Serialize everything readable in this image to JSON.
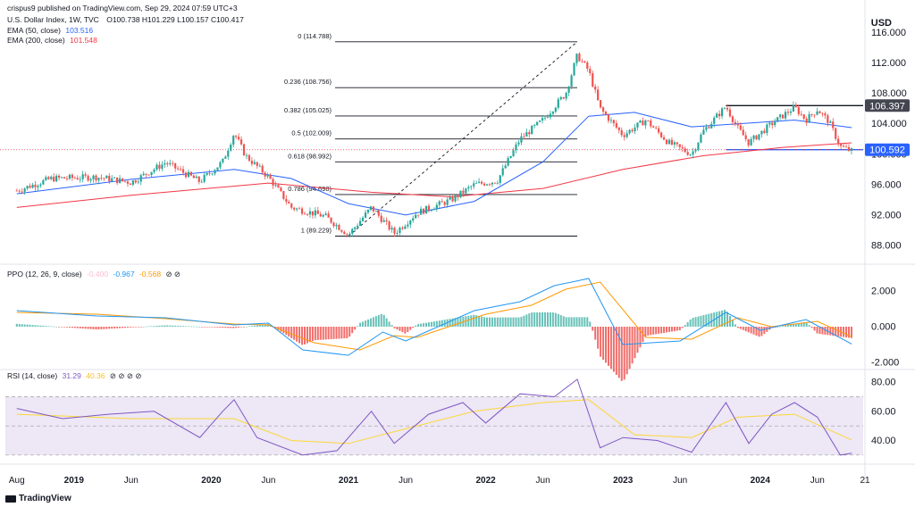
{
  "header": {
    "publisher": "crispus9 published on TradingView.com, Sep 29, 2024 07:59 UTC+3",
    "symbol": "U.S. Dollar Index, 1W, TVC",
    "ohlc": "O100.738 H101.229 L100.157 C100.417",
    "ema50_label": "EMA (50, close)",
    "ema50_value": "103.516",
    "ema200_label": "EMA (200, close)",
    "ema200_value": "101.548",
    "currency": "USD"
  },
  "footer": {
    "brand": "TradingView"
  },
  "colors": {
    "up": "#26a69a",
    "down": "#ef5350",
    "ema50": "#2962ff",
    "ema200": "#f23645",
    "ppo": "#2196f3",
    "signal": "#ff9800",
    "rsi": "#7e57c2",
    "rsi_ma": "#fdd835",
    "rsi_band": "#ede7f6",
    "fib": "#131722"
  },
  "chart_data": [
    {
      "type": "candlestick",
      "name": "price",
      "x_ticks": [
        "Aug",
        "2019",
        "Jun",
        "2020",
        "Jun",
        "2021",
        "Jun",
        "2022",
        "Jun",
        "2023",
        "Jun",
        "2024",
        "Jun",
        "21"
      ],
      "y_ticks": [
        "88.000",
        "92.000",
        "96.000",
        "100.000",
        "104.000",
        "108.000",
        "112.000",
        "116.000"
      ],
      "ylim": [
        86,
        117
      ],
      "fib_levels": [
        {
          "label": "0 (114.788)",
          "value": 114.788
        },
        {
          "label": "0.236 (108.756)",
          "value": 108.756
        },
        {
          "label": "0.382 (105.025)",
          "value": 105.025
        },
        {
          "label": "0.5 (102.009)",
          "value": 102.009
        },
        {
          "label": "0.618 (98.992)",
          "value": 98.992
        },
        {
          "label": "0.786 (94.698)",
          "value": 94.698
        },
        {
          "label": "1 (89.229)",
          "value": 89.229
        }
      ],
      "resistance": {
        "value": 106.397,
        "label": "106.397"
      },
      "support": {
        "value": 100.592,
        "label": "100.592"
      },
      "series_points": [
        {
          "x": "2018-08",
          "y": 95.2
        },
        {
          "x": "2018-11",
          "y": 96.8
        },
        {
          "x": "2019-03",
          "y": 97.0
        },
        {
          "x": "2019-06",
          "y": 96.3
        },
        {
          "x": "2019-09",
          "y": 98.9
        },
        {
          "x": "2019-12",
          "y": 96.4
        },
        {
          "x": "2020-02",
          "y": 99.0
        },
        {
          "x": "2020-03",
          "y": 102.8
        },
        {
          "x": "2020-04",
          "y": 99.8
        },
        {
          "x": "2020-06",
          "y": 97.0
        },
        {
          "x": "2020-08",
          "y": 93.0
        },
        {
          "x": "2020-11",
          "y": 91.8
        },
        {
          "x": "2021-01",
          "y": 89.4
        },
        {
          "x": "2021-03",
          "y": 93.0
        },
        {
          "x": "2021-05",
          "y": 89.6
        },
        {
          "x": "2021-07",
          "y": 92.3
        },
        {
          "x": "2021-10",
          "y": 94.0
        },
        {
          "x": "2021-12",
          "y": 96.0
        },
        {
          "x": "2022-02",
          "y": 96.5
        },
        {
          "x": "2022-04",
          "y": 102.0
        },
        {
          "x": "2022-06",
          "y": 104.5
        },
        {
          "x": "2022-08",
          "y": 108.0
        },
        {
          "x": "2022-09",
          "y": 113.0
        },
        {
          "x": "2022-10",
          "y": 111.0
        },
        {
          "x": "2022-11",
          "y": 106.0
        },
        {
          "x": "2023-01",
          "y": 102.5
        },
        {
          "x": "2023-03",
          "y": 104.5
        },
        {
          "x": "2023-05",
          "y": 101.5
        },
        {
          "x": "2023-07",
          "y": 100.0
        },
        {
          "x": "2023-08",
          "y": 103.0
        },
        {
          "x": "2023-10",
          "y": 106.3
        },
        {
          "x": "2023-11",
          "y": 103.5
        },
        {
          "x": "2023-12",
          "y": 101.5
        },
        {
          "x": "2024-02",
          "y": 104.0
        },
        {
          "x": "2024-04",
          "y": 106.2
        },
        {
          "x": "2024-05",
          "y": 104.5
        },
        {
          "x": "2024-06",
          "y": 105.9
        },
        {
          "x": "2024-07",
          "y": 104.3
        },
        {
          "x": "2024-08",
          "y": 101.0
        },
        {
          "x": "2024-09",
          "y": 100.4
        }
      ],
      "ema50_points": [
        {
          "x": "2018-08",
          "y": 94.8
        },
        {
          "x": "2019-06",
          "y": 96.7
        },
        {
          "x": "2020-03",
          "y": 98.0
        },
        {
          "x": "2020-08",
          "y": 96.8
        },
        {
          "x": "2021-01",
          "y": 93.5
        },
        {
          "x": "2021-06",
          "y": 92.0
        },
        {
          "x": "2021-12",
          "y": 93.8
        },
        {
          "x": "2022-06",
          "y": 99.0
        },
        {
          "x": "2022-10",
          "y": 105.0
        },
        {
          "x": "2023-02",
          "y": 105.5
        },
        {
          "x": "2023-07",
          "y": 103.6
        },
        {
          "x": "2023-11",
          "y": 104.0
        },
        {
          "x": "2024-04",
          "y": 104.5
        },
        {
          "x": "2024-09",
          "y": 103.5
        }
      ],
      "ema200_points": [
        {
          "x": "2018-08",
          "y": 93.0
        },
        {
          "x": "2019-06",
          "y": 94.6
        },
        {
          "x": "2020-06",
          "y": 96.2
        },
        {
          "x": "2021-03",
          "y": 95.0
        },
        {
          "x": "2021-10",
          "y": 94.4
        },
        {
          "x": "2022-06",
          "y": 95.5
        },
        {
          "x": "2023-01",
          "y": 98.0
        },
        {
          "x": "2023-08",
          "y": 99.8
        },
        {
          "x": "2024-03",
          "y": 100.9
        },
        {
          "x": "2024-09",
          "y": 101.5
        }
      ]
    },
    {
      "type": "line",
      "name": "ppo",
      "title": "PPO (12, 26, 9, close)",
      "values_shown": [
        "-0.400",
        "-0.967",
        "-0.568"
      ],
      "y_ticks": [
        "2.000",
        "0.000",
        "-2.000"
      ],
      "ylim": [
        -2.2,
        3.0
      ],
      "series": [
        {
          "role": "ppo",
          "points": [
            {
              "x": "2018-08",
              "y": 0.9
            },
            {
              "x": "2019-03",
              "y": 0.6
            },
            {
              "x": "2019-09",
              "y": 0.5
            },
            {
              "x": "2020-03",
              "y": 0.1
            },
            {
              "x": "2020-06",
              "y": 0.2
            },
            {
              "x": "2020-09",
              "y": -1.3
            },
            {
              "x": "2021-01",
              "y": -1.6
            },
            {
              "x": "2021-04",
              "y": -0.3
            },
            {
              "x": "2021-06",
              "y": -0.8
            },
            {
              "x": "2021-12",
              "y": 0.9
            },
            {
              "x": "2022-04",
              "y": 1.4
            },
            {
              "x": "2022-07",
              "y": 2.3
            },
            {
              "x": "2022-10",
              "y": 2.7
            },
            {
              "x": "2023-01",
              "y": -1.0
            },
            {
              "x": "2023-06",
              "y": -0.8
            },
            {
              "x": "2023-10",
              "y": 0.8
            },
            {
              "x": "2024-01",
              "y": -0.2
            },
            {
              "x": "2024-05",
              "y": 0.4
            },
            {
              "x": "2024-09",
              "y": -0.97
            }
          ]
        },
        {
          "role": "signal",
          "points": [
            {
              "x": "2018-08",
              "y": 0.8
            },
            {
              "x": "2019-03",
              "y": 0.7
            },
            {
              "x": "2019-09",
              "y": 0.45
            },
            {
              "x": "2020-03",
              "y": 0.15
            },
            {
              "x": "2020-06",
              "y": 0.1
            },
            {
              "x": "2020-10",
              "y": -0.9
            },
            {
              "x": "2021-02",
              "y": -1.3
            },
            {
              "x": "2021-05",
              "y": -0.5
            },
            {
              "x": "2021-07",
              "y": -0.6
            },
            {
              "x": "2022-01",
              "y": 0.7
            },
            {
              "x": "2022-05",
              "y": 1.2
            },
            {
              "x": "2022-08",
              "y": 2.1
            },
            {
              "x": "2022-11",
              "y": 2.5
            },
            {
              "x": "2023-03",
              "y": -0.6
            },
            {
              "x": "2023-07",
              "y": -0.7
            },
            {
              "x": "2023-11",
              "y": 0.5
            },
            {
              "x": "2024-02",
              "y": 0.0
            },
            {
              "x": "2024-06",
              "y": 0.3
            },
            {
              "x": "2024-09",
              "y": -0.57
            }
          ]
        }
      ]
    },
    {
      "type": "line",
      "name": "rsi",
      "title": "RSI (14, close)",
      "values_shown": [
        "31.29",
        "40.36"
      ],
      "y_ticks": [
        "80.00",
        "60.00",
        "40.00"
      ],
      "ylim": [
        25,
        85
      ],
      "bands": [
        30,
        50,
        70
      ],
      "series": [
        {
          "role": "rsi",
          "points": [
            {
              "x": "2018-08",
              "y": 62
            },
            {
              "x": "2018-12",
              "y": 55
            },
            {
              "x": "2019-04",
              "y": 58
            },
            {
              "x": "2019-08",
              "y": 60
            },
            {
              "x": "2019-12",
              "y": 42
            },
            {
              "x": "2020-02",
              "y": 60
            },
            {
              "x": "2020-03",
              "y": 68
            },
            {
              "x": "2020-05",
              "y": 42
            },
            {
              "x": "2020-09",
              "y": 30
            },
            {
              "x": "2020-12",
              "y": 33
            },
            {
              "x": "2021-03",
              "y": 60
            },
            {
              "x": "2021-05",
              "y": 38
            },
            {
              "x": "2021-08",
              "y": 58
            },
            {
              "x": "2021-11",
              "y": 66
            },
            {
              "x": "2022-01",
              "y": 52
            },
            {
              "x": "2022-04",
              "y": 72
            },
            {
              "x": "2022-07",
              "y": 70
            },
            {
              "x": "2022-09",
              "y": 82
            },
            {
              "x": "2022-11",
              "y": 35
            },
            {
              "x": "2023-01",
              "y": 42
            },
            {
              "x": "2023-04",
              "y": 40
            },
            {
              "x": "2023-07",
              "y": 32
            },
            {
              "x": "2023-10",
              "y": 66
            },
            {
              "x": "2023-12",
              "y": 38
            },
            {
              "x": "2024-02",
              "y": 58
            },
            {
              "x": "2024-04",
              "y": 66
            },
            {
              "x": "2024-06",
              "y": 56
            },
            {
              "x": "2024-08",
              "y": 30
            },
            {
              "x": "2024-09",
              "y": 31.29
            }
          ]
        },
        {
          "role": "rsi_ma",
          "points": [
            {
              "x": "2018-08",
              "y": 58
            },
            {
              "x": "2019-06",
              "y": 55
            },
            {
              "x": "2020-03",
              "y": 55
            },
            {
              "x": "2020-08",
              "y": 40
            },
            {
              "x": "2021-01",
              "y": 38
            },
            {
              "x": "2021-06",
              "y": 48
            },
            {
              "x": "2021-12",
              "y": 60
            },
            {
              "x": "2022-06",
              "y": 66
            },
            {
              "x": "2022-10",
              "y": 68
            },
            {
              "x": "2023-02",
              "y": 44
            },
            {
              "x": "2023-07",
              "y": 42
            },
            {
              "x": "2023-11",
              "y": 56
            },
            {
              "x": "2024-04",
              "y": 58
            },
            {
              "x": "2024-09",
              "y": 40.36
            }
          ]
        }
      ]
    }
  ]
}
